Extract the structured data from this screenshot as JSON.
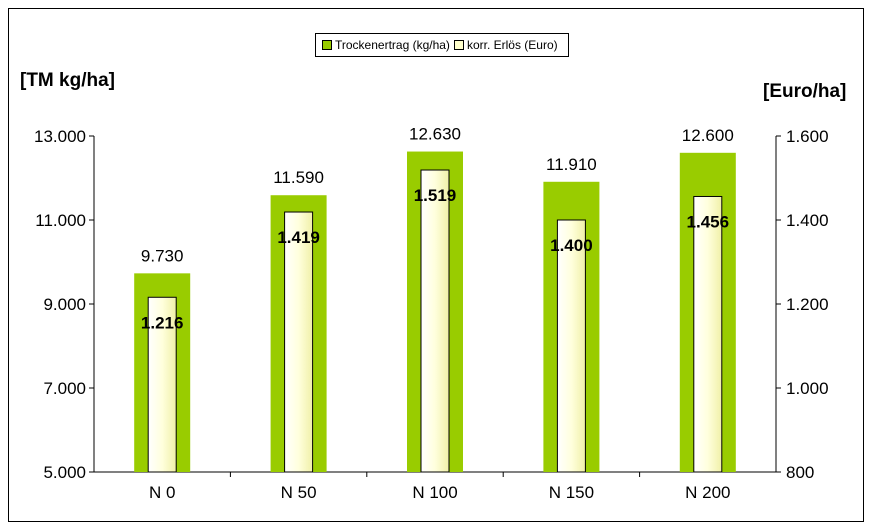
{
  "chart_data": {
    "type": "bar",
    "categories": [
      "N 0",
      "N 50",
      "N 100",
      "N 150",
      "N 200"
    ],
    "series": [
      {
        "name": "Trockenertrag (kg/ha)",
        "axis": "left",
        "values": [
          9730,
          11590,
          12630,
          11910,
          12600
        ],
        "labels": [
          "9.730",
          "11.590",
          "12.630",
          "11.910",
          "12.600"
        ],
        "color": "#99cc00"
      },
      {
        "name": "korr. Erlös (Euro)",
        "axis": "right",
        "values": [
          1216,
          1419,
          1519,
          1400,
          1456
        ],
        "labels": [
          "1.216",
          "1.419",
          "1.519",
          "1.400",
          "1.456"
        ],
        "color": "#ffffcc"
      }
    ],
    "ylabel_left": "[TM kg/ha]",
    "ylabel_right": "[Euro/ha]",
    "ylim_left": [
      5000,
      13000
    ],
    "ylim_right": [
      800,
      1600
    ],
    "yticks_left": [
      "5.000",
      "7.000",
      "9.000",
      "11.000",
      "13.000"
    ],
    "yticks_right": [
      "800",
      "1.000",
      "1.200",
      "1.400",
      "1.600"
    ],
    "legend_position": "top-center",
    "grid": false
  }
}
